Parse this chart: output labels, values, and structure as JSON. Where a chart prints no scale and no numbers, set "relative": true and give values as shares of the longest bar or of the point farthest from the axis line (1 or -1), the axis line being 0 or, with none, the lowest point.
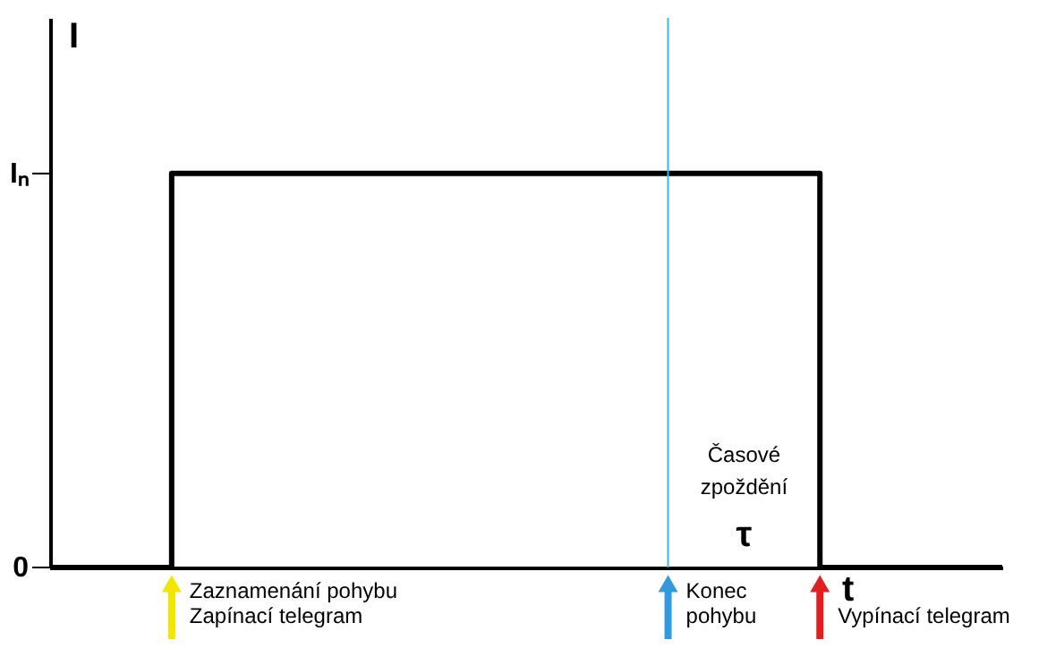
{
  "chart_data": {
    "type": "step",
    "xlabel": "t",
    "ylabel": "I",
    "categories": [
      null,
      null,
      null,
      null,
      null,
      null,
      null,
      null,
      null,
      null,
      null,
      null,
      null,
      null,
      null,
      null,
      null,
      null,
      null,
      null,
      null,
      null,
      null,
      null,
      null,
      null,
      null,
      null,
      null,
      null,
      null,
      null,
      null,
      null,
      null,
      null,
      null,
      null,
      null,
      null,
      null,
      null,
      null,
      null,
      null,
      null,
      null,
      null
    ],
    "series": [
      {
        "color": "#000000",
        "values": [
          0,
          0,
          0,
          0,
          0,
          0,
          1,
          1,
          1,
          1,
          1,
          1,
          1,
          1,
          1,
          1,
          1,
          1,
          1,
          1,
          1,
          1,
          1,
          1,
          1,
          1,
          1,
          1,
          1,
          1,
          1,
          1,
          1,
          1,
          1,
          1,
          1,
          1,
          0,
          0,
          0,
          0,
          0,
          0,
          0,
          0,
          0,
          0
        ]
      }
    ],
    "relative": true,
    "annotations": [
      "Iₙ",
      "0",
      "Zaznamenání pohybu\nZapínací telegram",
      "Konec\npohybu",
      "Vypínací telegram",
      "Časové\nzpoždění",
      "τ"
    ]
  }
}
